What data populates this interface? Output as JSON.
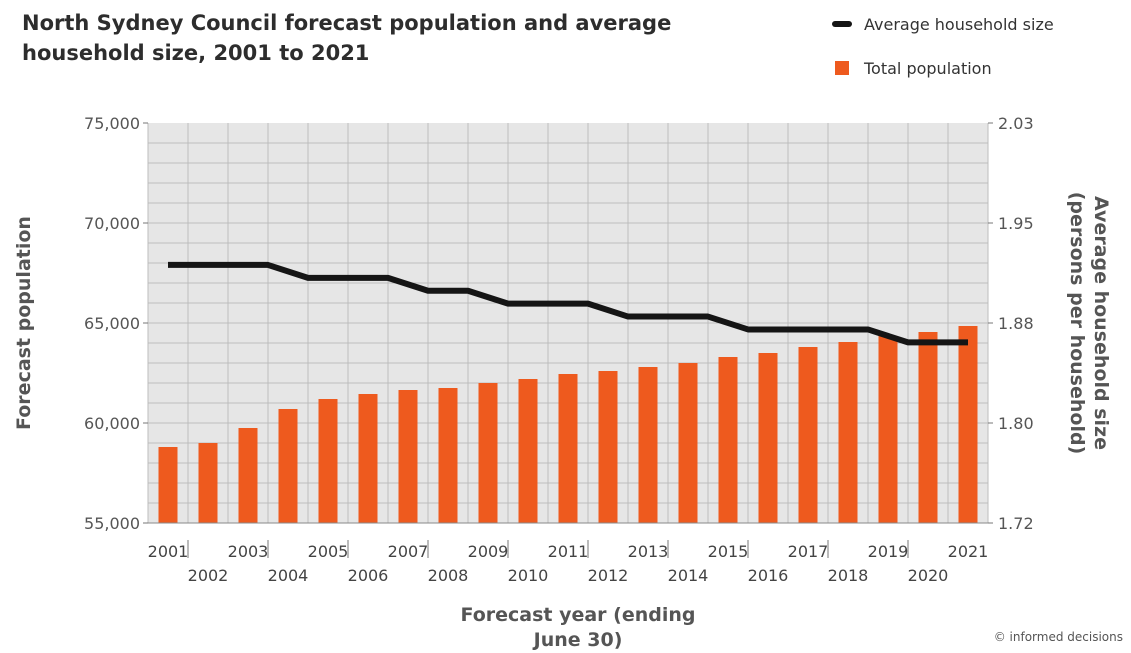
{
  "colors": {
    "bar": "#ee5a1e",
    "line": "#151515",
    "plot_bg": "#e6e6e6",
    "grid": "#bdbdbd"
  },
  "credit": "© informed decisions",
  "chart_data": {
    "type": "bar",
    "title": "North Sydney Council forecast population and average household size, 2001 to 2021",
    "xlabel": "Forecast year (ending June 30)",
    "ylabel": "Forecast population",
    "y2label": "Average household size (persons per household)",
    "ylim": [
      55000,
      75000
    ],
    "y2lim": [
      1.72,
      2.03
    ],
    "yticks": [
      "55,000",
      "60,000",
      "65,000",
      "70,000",
      "75,000"
    ],
    "y2ticks": [
      "1.72",
      "1.80",
      "1.88",
      "1.95",
      "2.03"
    ],
    "grid": true,
    "legend_position": "top-right",
    "categories": [
      "2001",
      "2002",
      "2003",
      "2004",
      "2005",
      "2006",
      "2007",
      "2008",
      "2009",
      "2010",
      "2011",
      "2012",
      "2013",
      "2014",
      "2015",
      "2016",
      "2017",
      "2018",
      "2019",
      "2020",
      "2021"
    ],
    "series": [
      {
        "name": "Total population",
        "type": "bar",
        "axis": "left",
        "values": [
          58800,
          59000,
          59750,
          60700,
          61200,
          61450,
          61650,
          61750,
          62000,
          62200,
          62450,
          62600,
          62800,
          63000,
          63300,
          63500,
          63800,
          64050,
          64350,
          64550,
          64850
        ]
      },
      {
        "name": "Average household size",
        "type": "line",
        "axis": "right",
        "values": [
          1.92,
          1.92,
          1.92,
          1.91,
          1.91,
          1.91,
          1.9,
          1.9,
          1.89,
          1.89,
          1.89,
          1.88,
          1.88,
          1.88,
          1.87,
          1.87,
          1.87,
          1.87,
          1.86,
          1.86,
          1.86
        ]
      }
    ]
  }
}
